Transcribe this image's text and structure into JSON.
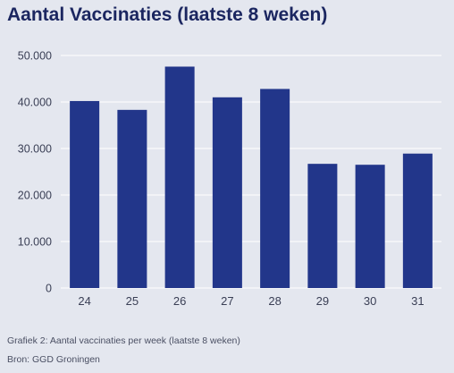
{
  "title": "Aantal Vaccinaties (laatste 8 weken)",
  "caption_line1": "Grafiek 2: Aantal vaccinaties per week (laatste 8 weken)",
  "caption_line2": "Bron: GGD Groningen",
  "chart_data": {
    "type": "bar",
    "title": "Aantal Vaccinaties (laatste 8 weken)",
    "categories": [
      "24",
      "25",
      "26",
      "27",
      "28",
      "29",
      "30",
      "31"
    ],
    "values": [
      40200,
      38300,
      47600,
      41000,
      42800,
      26700,
      26500,
      28900
    ],
    "ylim": [
      0,
      50000
    ],
    "yticks": [
      0,
      10000,
      20000,
      30000,
      40000,
      50000
    ],
    "ytick_labels": [
      "0",
      "10.000",
      "20.000",
      "30.000",
      "40.000",
      "50.000"
    ],
    "grid": true,
    "bar_color": "#22368a",
    "grid_color": "#ffffff",
    "axis_label_color": "#3a3f55"
  }
}
